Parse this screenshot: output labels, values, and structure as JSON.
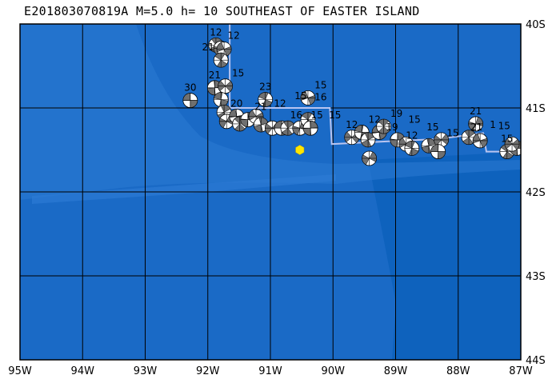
{
  "title": "E201803070819A M=5.0 h= 10 SOUTHEAST OF EASTER ISLAND",
  "map": {
    "lon_range": [
      -95,
      -87
    ],
    "lat_range": [
      -44,
      -40
    ],
    "lon_ticks": [
      {
        "value": -95,
        "label": "95W"
      },
      {
        "value": -94,
        "label": "94W"
      },
      {
        "value": -93,
        "label": "93W"
      },
      {
        "value": -92,
        "label": "92W"
      },
      {
        "value": -91,
        "label": "91W"
      },
      {
        "value": -90,
        "label": "90W"
      },
      {
        "value": -89,
        "label": "89W"
      },
      {
        "value": -88,
        "label": "88W"
      },
      {
        "value": -87,
        "label": "87W"
      }
    ],
    "lat_ticks": [
      {
        "value": -40,
        "label": "40S"
      },
      {
        "value": -41,
        "label": "41S"
      },
      {
        "value": -42,
        "label": "42S"
      },
      {
        "value": -43,
        "label": "43S"
      },
      {
        "value": -44,
        "label": "44S"
      }
    ],
    "colors": {
      "ocean": "#1a6ac6",
      "deep": "#0e62bd",
      "shelf": "#2c7ad4",
      "boundary": "#b8c4f0",
      "epicenter": "#ffe600"
    },
    "epicenter": {
      "lon": -90.53,
      "lat": -41.5
    },
    "plate_boundary": [
      [
        -91.65,
        -40
      ],
      [
        -91.65,
        -41.0
      ],
      [
        -90.05,
        -41.0
      ],
      [
        -90.02,
        -41.43
      ],
      [
        -88.33,
        -41.37
      ],
      [
        -87.6,
        -41.3
      ],
      [
        -87.55,
        -41.52
      ],
      [
        -87,
        -41.52
      ]
    ],
    "events": [
      {
        "lon": -92.28,
        "lat": -40.91,
        "label": "30"
      },
      {
        "lon": -91.87,
        "lat": -40.25,
        "label": "12"
      },
      {
        "lon": -91.79,
        "lat": -40.29,
        "label": "12"
      },
      {
        "lon": -91.74,
        "lat": -40.3,
        "label": ""
      },
      {
        "lon": -91.79,
        "lat": -40.43,
        "label": "21"
      },
      {
        "lon": -91.89,
        "lat": -40.76,
        "label": "21"
      },
      {
        "lon": -91.72,
        "lat": -40.74,
        "label": "15"
      },
      {
        "lon": -91.79,
        "lat": -40.9,
        "label": ""
      },
      {
        "lon": -91.74,
        "lat": -41.05,
        "label": ""
      },
      {
        "lon": -91.7,
        "lat": -41.16,
        "label": ""
      },
      {
        "lon": -91.54,
        "lat": -41.1,
        "label": "20"
      },
      {
        "lon": -91.49,
        "lat": -41.19,
        "label": ""
      },
      {
        "lon": -91.36,
        "lat": -41.14,
        "label": "21"
      },
      {
        "lon": -91.23,
        "lat": -41.1,
        "label": "12"
      },
      {
        "lon": -91.08,
        "lat": -40.9,
        "label": "23"
      },
      {
        "lon": -91.15,
        "lat": -41.2,
        "label": ""
      },
      {
        "lon": -90.97,
        "lat": -41.24,
        "label": "16"
      },
      {
        "lon": -90.82,
        "lat": -41.24,
        "label": "15"
      },
      {
        "lon": -90.72,
        "lat": -41.24,
        "label": "15"
      },
      {
        "lon": -90.53,
        "lat": -41.24,
        "label": "15"
      },
      {
        "lon": -90.4,
        "lat": -40.88,
        "label": "15"
      },
      {
        "lon": -90.4,
        "lat": -41.14,
        "label": "16"
      },
      {
        "lon": -90.36,
        "lat": -41.24,
        "label": ""
      },
      {
        "lon": -89.7,
        "lat": -41.35,
        "label": "12"
      },
      {
        "lon": -89.54,
        "lat": -41.29,
        "label": "12"
      },
      {
        "lon": -89.44,
        "lat": -41.38,
        "label": "19"
      },
      {
        "lon": -89.42,
        "lat": -41.6,
        "label": ""
      },
      {
        "lon": -89.26,
        "lat": -41.29,
        "label": "15"
      },
      {
        "lon": -89.19,
        "lat": -41.22,
        "label": "19"
      },
      {
        "lon": -88.97,
        "lat": -41.38,
        "label": "15"
      },
      {
        "lon": -88.83,
        "lat": -41.43,
        "label": ""
      },
      {
        "lon": -88.74,
        "lat": -41.48,
        "label": "12"
      },
      {
        "lon": -88.47,
        "lat": -41.45,
        "label": "15"
      },
      {
        "lon": -88.27,
        "lat": -41.38,
        "label": "21"
      },
      {
        "lon": -88.32,
        "lat": -41.52,
        "label": ""
      },
      {
        "lon": -87.83,
        "lat": -41.35,
        "label": "1"
      },
      {
        "lon": -87.72,
        "lat": -41.19,
        "label": "21"
      },
      {
        "lon": -87.65,
        "lat": -41.39,
        "label": ""
      },
      {
        "lon": -87.22,
        "lat": -41.52,
        "label": "15"
      },
      {
        "lon": -87.06,
        "lat": -41.48,
        "label": "15"
      },
      {
        "lon": -87.14,
        "lat": -41.43,
        "label": ""
      }
    ]
  }
}
